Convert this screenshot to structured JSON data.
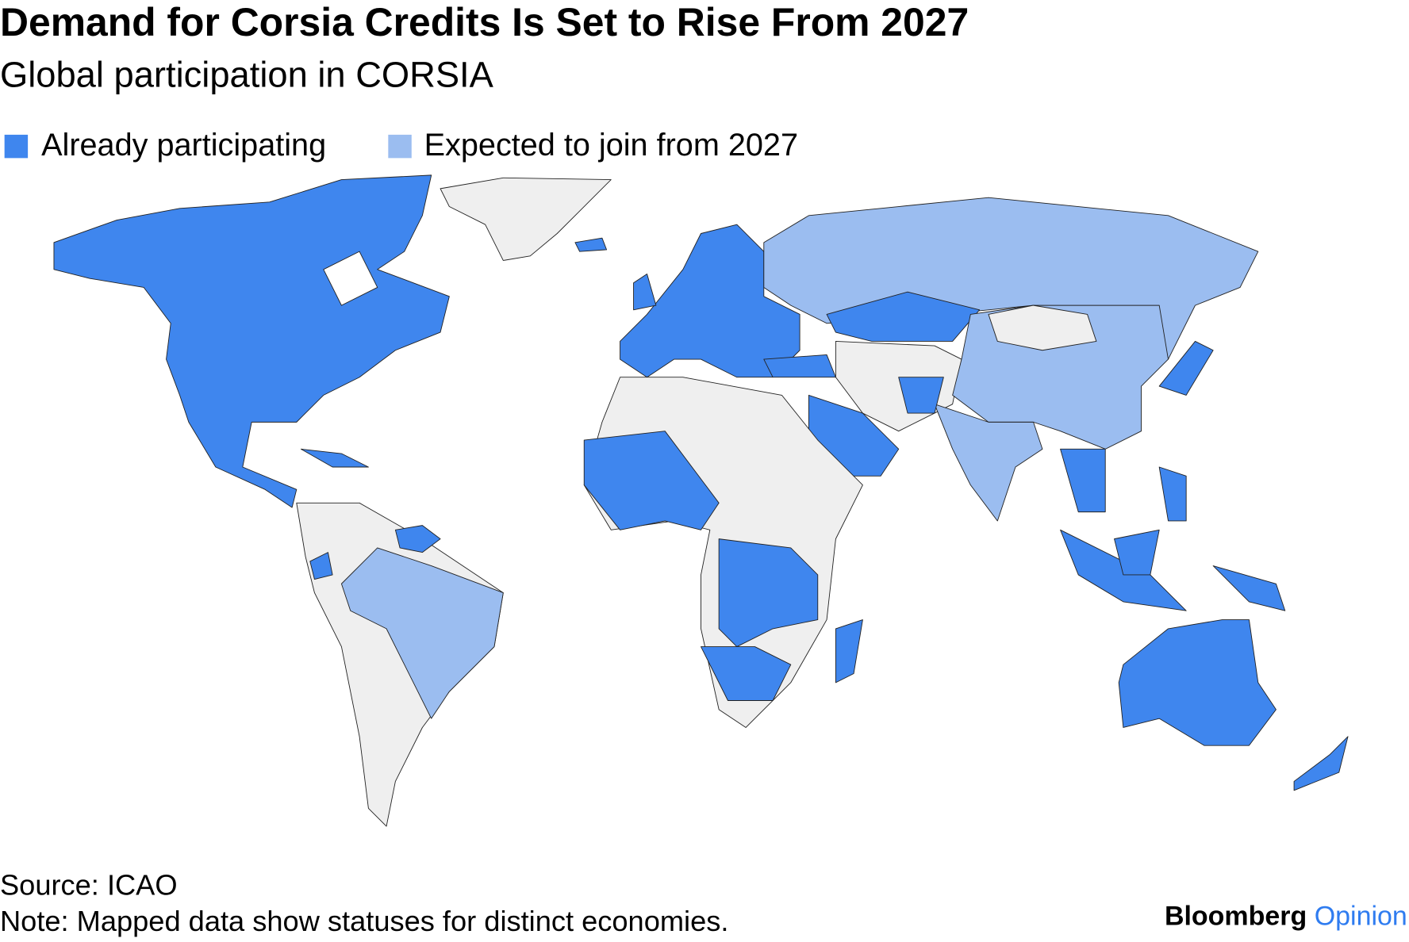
{
  "header": {
    "title": "Demand for Corsia Credits Is Set to Rise From 2027",
    "subtitle": "Global participation in CORSIA"
  },
  "legend": [
    {
      "label": "Already participating",
      "color": "#3f86ee"
    },
    {
      "label": "Expected to join from 2027",
      "color": "#9bbdf0"
    }
  ],
  "footer": {
    "source": "Source: ICAO",
    "note": "Note: Mapped data show statuses for distinct economies."
  },
  "brand": {
    "name": "Bloomberg",
    "suffix": "Opinion"
  }
}
